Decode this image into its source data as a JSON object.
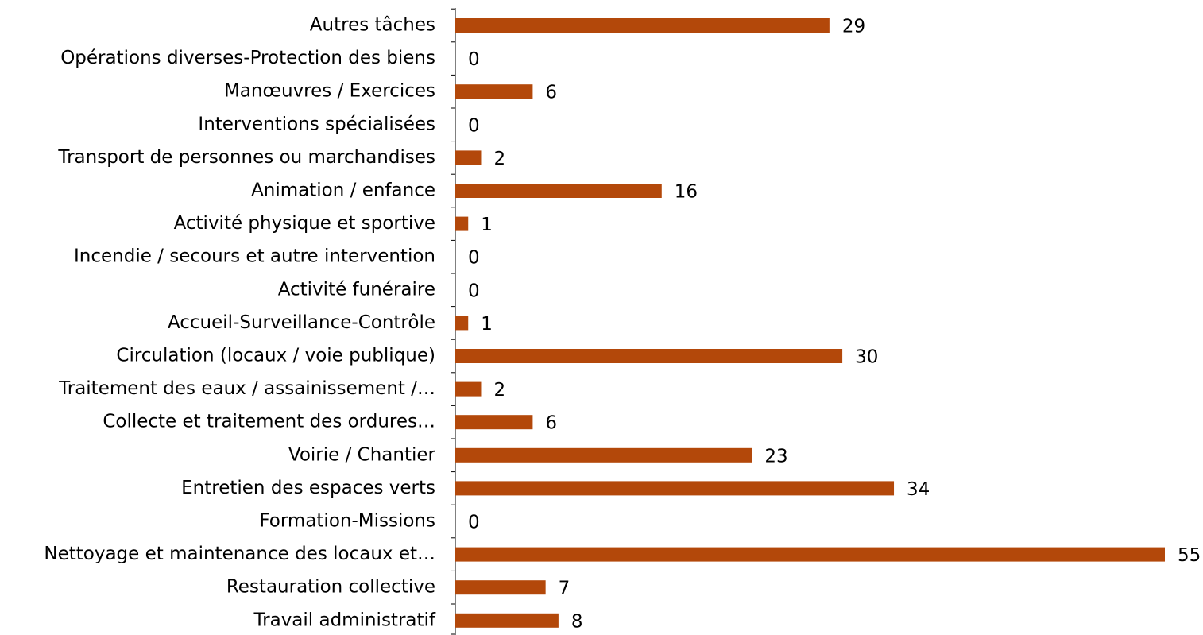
{
  "chart_data": {
    "type": "bar",
    "orientation": "horizontal",
    "color": "#b3480a",
    "categories": [
      "Autres tâches",
      "Opérations diverses-Protection des biens",
      "Manœuvres / Exercices",
      "Interventions spécialisées",
      "Transport de personnes ou marchandises",
      "Animation / enfance",
      "Activité physique et sportive",
      "Incendie / secours et autre intervention",
      "Activité funéraire",
      "Accueil-Surveillance-Contrôle",
      "Circulation (locaux / voie publique)",
      "Traitement des eaux / assainissement /…",
      "Collecte et traitement des ordures…",
      "Voirie / Chantier",
      "Entretien des espaces verts",
      "Formation-Missions",
      "Nettoyage et maintenance des locaux et…",
      "Restauration collective",
      "Travail administratif"
    ],
    "values": [
      29,
      0,
      6,
      0,
      2,
      16,
      1,
      0,
      0,
      1,
      30,
      2,
      6,
      23,
      34,
      0,
      55,
      7,
      8
    ]
  }
}
